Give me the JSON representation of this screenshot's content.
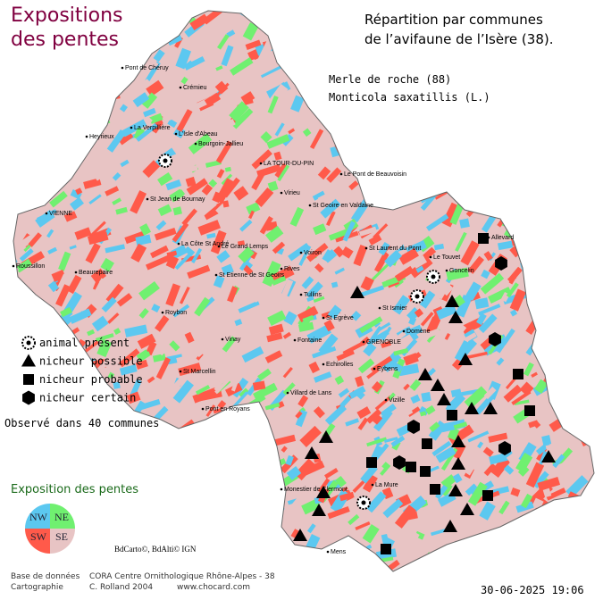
{
  "title": [
    "Expositions",
    "des pentes"
  ],
  "header": [
    "Répartition par communes",
    "de l’avifaune de l’Isère (38)."
  ],
  "species": {
    "common": "Merle de roche  (88)",
    "latin": "Monticola saxatillis (L.)"
  },
  "legend": [
    "animal présent",
    "nicheur possible",
    "nicheur probable",
    "nicheur certain"
  ],
  "observed": "Observé dans 40 communes",
  "exposure": {
    "title": "Exposition des pentes",
    "quadrants": [
      "NW",
      "NE",
      "SW",
      "SE"
    ]
  },
  "sources": "BdCarto©, BdAlti© IGN",
  "credits": [
    [
      "Base de données",
      "CORA Centre Ornithologique Rhône-Alpes - 38"
    ],
    [
      "Cartographie",
      "C. Rolland 2004",
      "www.chocard.com"
    ]
  ],
  "date": "30-06-2025 19:06",
  "places": [
    "Pont de Chéruy",
    "Crémieu",
    "La Verpillière",
    "L'Isle d'Abeau",
    "Heyrieux",
    "Bourgoin-Jallieu",
    "LA TOUR-DU-PIN",
    "Le Pont de Beauvoisin",
    "VIENNE",
    "St Jean de Bournay",
    "Virieu",
    "St Geoire en Valdaine",
    "Roussillon",
    "Beaurepaire",
    "La Côte St André",
    "Le Grand Lemps",
    "St Etienne de St Geoirs",
    "Voiron",
    "St Laurent du Pont",
    "Le Touvet",
    "Goncelin",
    "Allevard",
    "Rives",
    "Tullins",
    "St Egrève",
    "Roybon",
    "Vinay",
    "Fontaine",
    "GRENOBLE",
    "Domène",
    "St Ismier",
    "Vizille",
    "Eybens",
    "St Marcellin",
    "Pont en Royans",
    "Echirolles",
    "Villard de Lans",
    "Monestier de Clermont",
    "La Mure",
    "Mens"
  ]
}
